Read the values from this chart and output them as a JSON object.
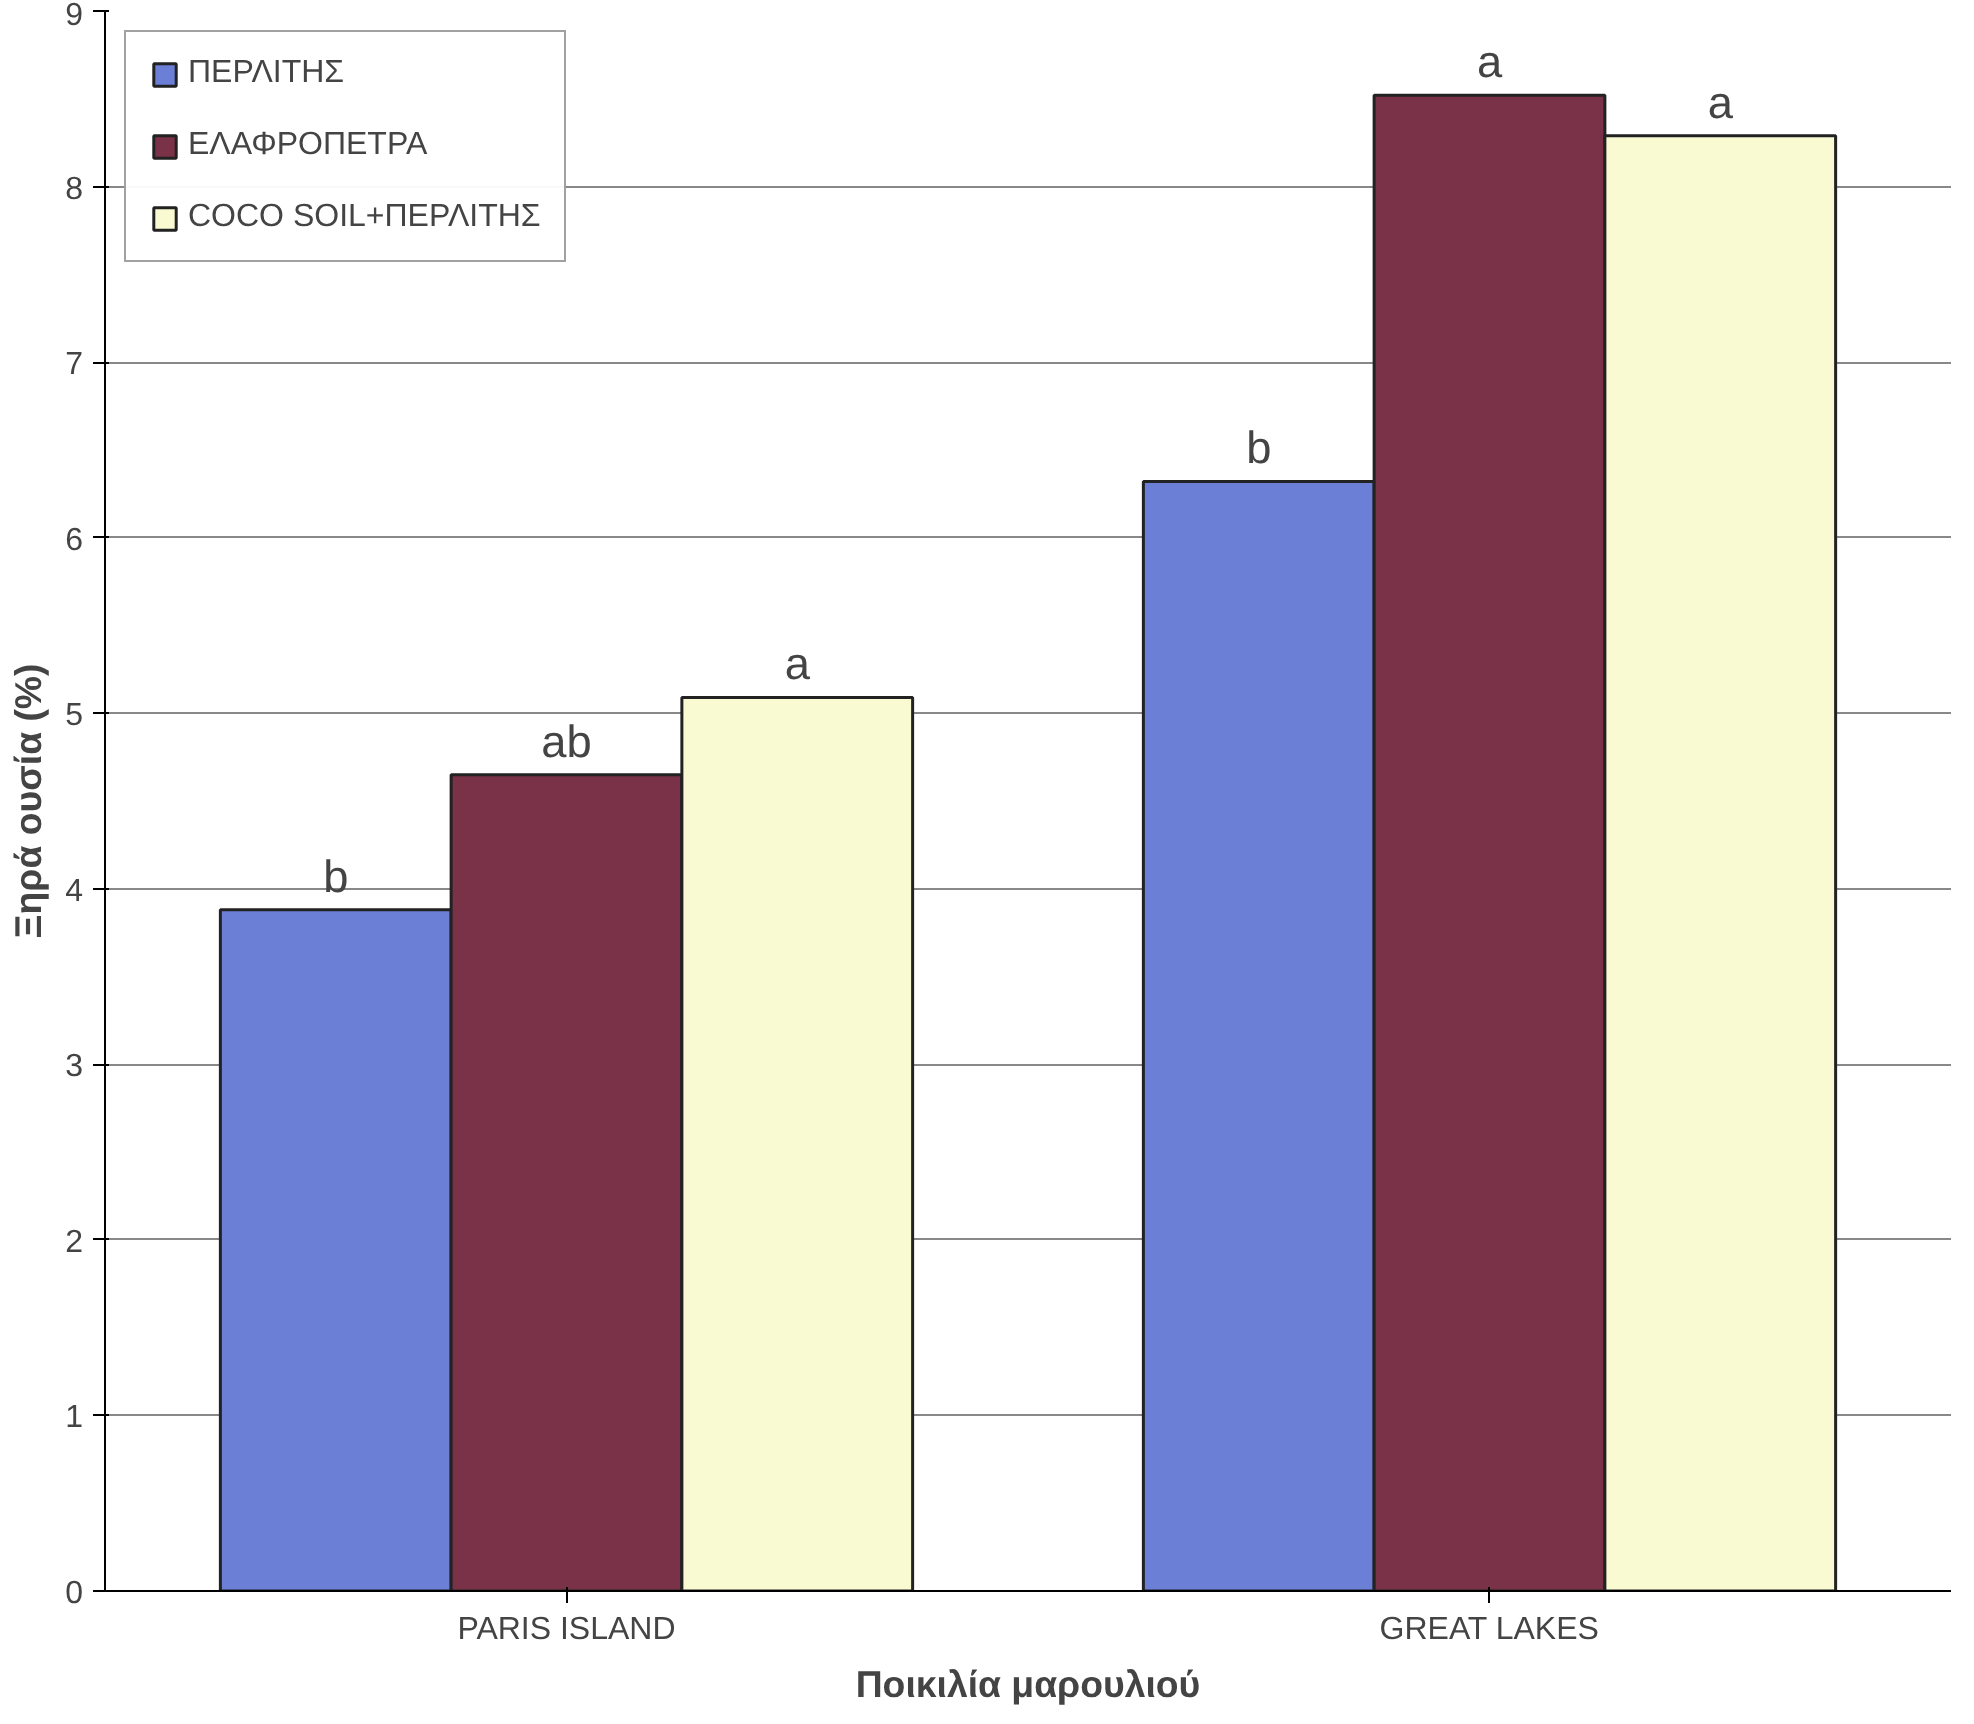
{
  "chart_data": {
    "type": "bar",
    "xlabel": "Ποικιλία μαρουλιού",
    "ylabel": "Ξηρά ουσία (%)",
    "categories": [
      "PARIS ISLAND",
      "GREAT LAKES"
    ],
    "series": [
      {
        "name": "ΠΕΡΛΙΤΗΣ",
        "color": "#6b7fd6",
        "values": [
          3.88,
          6.32
        ],
        "value_labels": [
          "b",
          "b"
        ]
      },
      {
        "name": "ΕΛΑΦΡΟΠΕΤΡΑ",
        "color": "#7a3248",
        "values": [
          4.65,
          8.52
        ],
        "value_labels": [
          "ab",
          "a"
        ]
      },
      {
        "name": "COCO SOIL+ΠΕΡΛΙΤΗΣ",
        "color": "#fafad2",
        "values": [
          5.09,
          8.29
        ],
        "value_labels": [
          "a",
          "a"
        ]
      }
    ],
    "ylim": [
      0,
      9
    ],
    "yticks": [
      0,
      1,
      2,
      3,
      4,
      5,
      6,
      7,
      8,
      9
    ],
    "grid": "y",
    "legend": "top left"
  }
}
